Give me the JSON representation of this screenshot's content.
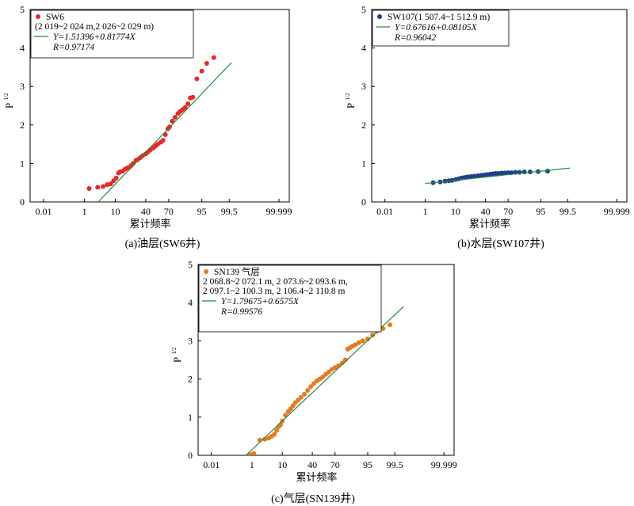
{
  "chart_data": [
    {
      "type": "scatter",
      "caption": "(a)油层(SW6井)",
      "xlabel": "累计频率",
      "ylabel": "P",
      "ylabel_sup": "1/2",
      "x_ticks": [
        "0.01",
        "1",
        "10",
        "40",
        "70",
        "95",
        "99.5",
        "99.999"
      ],
      "y_ticks": [
        "0",
        "1",
        "2",
        "3",
        "4",
        "5"
      ],
      "ylim": [
        0,
        5
      ],
      "legend": {
        "series_name": "SW6",
        "extra_lines": [
          "(2 019~2 024 m,2 026~2 029 m)"
        ],
        "fit_line": "Y=1.51396+0.81774X",
        "r_line": "R=0.97174"
      },
      "series": [
        {
          "name": "SW6",
          "color": "#e8282a",
          "points": [
            [
              1.5,
              0.35
            ],
            [
              3,
              0.38
            ],
            [
              4.5,
              0.4
            ],
            [
              6,
              0.45
            ],
            [
              7.5,
              0.47
            ],
            [
              9,
              0.55
            ],
            [
              10.5,
              0.62
            ],
            [
              12,
              0.75
            ],
            [
              13,
              0.78
            ],
            [
              15,
              0.8
            ],
            [
              17,
              0.85
            ],
            [
              19,
              0.88
            ],
            [
              21,
              0.9
            ],
            [
              23,
              0.95
            ],
            [
              25,
              1.0
            ],
            [
              28,
              1.08
            ],
            [
              30,
              1.1
            ],
            [
              33,
              1.15
            ],
            [
              36,
              1.2
            ],
            [
              40,
              1.25
            ],
            [
              43,
              1.3
            ],
            [
              46,
              1.35
            ],
            [
              50,
              1.4
            ],
            [
              53,
              1.45
            ],
            [
              56,
              1.5
            ],
            [
              60,
              1.55
            ],
            [
              63,
              1.6
            ],
            [
              66,
              1.75
            ],
            [
              69,
              1.9
            ],
            [
              71,
              1.95
            ],
            [
              74,
              2.1
            ],
            [
              77,
              2.2
            ],
            [
              80,
              2.3
            ],
            [
              82,
              2.35
            ],
            [
              84,
              2.4
            ],
            [
              86,
              2.45
            ],
            [
              88,
              2.55
            ],
            [
              89.5,
              2.7
            ],
            [
              91,
              2.72
            ],
            [
              93,
              3.2
            ],
            [
              95,
              3.4
            ],
            [
              96.5,
              3.6
            ],
            [
              98,
              3.75
            ]
          ]
        },
        {
          "name": "fit",
          "color": "#2a8a3a",
          "line": [
            [
              2.5,
              -0.08
            ],
            [
              99.6,
              3.62
            ]
          ]
        }
      ]
    },
    {
      "type": "scatter",
      "caption": "(b)水层(SW107井)",
      "xlabel": "累计频率",
      "ylabel": "P",
      "ylabel_sup": "1/2",
      "x_ticks": [
        "0.01",
        "1",
        "10",
        "40",
        "70",
        "95",
        "99.5",
        "99.999"
      ],
      "y_ticks": [
        "0",
        "1",
        "2",
        "3",
        "4",
        "5"
      ],
      "ylim": [
        0,
        5
      ],
      "legend": {
        "series_name": "SW107(1 507.4~1 512.9 m)",
        "extra_lines": [],
        "fit_line": "Y=0.67616+0.08105X",
        "r_line": "R=0.96042"
      },
      "series": [
        {
          "name": "SW107(1 507.4~1 512.9 m)",
          "color": "#1f3f8f",
          "points": [
            [
              2,
              0.5
            ],
            [
              3.5,
              0.52
            ],
            [
              5,
              0.54
            ],
            [
              6.5,
              0.55
            ],
            [
              8,
              0.56
            ],
            [
              10,
              0.58
            ],
            [
              12,
              0.6
            ],
            [
              14,
              0.62
            ],
            [
              16,
              0.63
            ],
            [
              18,
              0.64
            ],
            [
              20,
              0.65
            ],
            [
              23,
              0.66
            ],
            [
              26,
              0.67
            ],
            [
              30,
              0.68
            ],
            [
              34,
              0.69
            ],
            [
              38,
              0.7
            ],
            [
              42,
              0.71
            ],
            [
              46,
              0.72
            ],
            [
              50,
              0.73
            ],
            [
              54,
              0.74
            ],
            [
              58,
              0.74
            ],
            [
              62,
              0.75
            ],
            [
              66,
              0.75
            ],
            [
              70,
              0.76
            ],
            [
              74,
              0.76
            ],
            [
              78,
              0.77
            ],
            [
              82,
              0.77
            ],
            [
              86,
              0.78
            ],
            [
              90,
              0.78
            ],
            [
              94,
              0.79
            ],
            [
              97,
              0.8
            ]
          ]
        },
        {
          "name": "fit",
          "color": "#2a8a3a",
          "line": [
            [
              1,
              0.48
            ],
            [
              99.6,
              0.88
            ]
          ]
        }
      ]
    },
    {
      "type": "scatter",
      "caption": "(c)气层(SN139井)",
      "xlabel": "累计频率",
      "ylabel": "P",
      "ylabel_sup": "1/2",
      "x_ticks": [
        "0.01",
        "1",
        "10",
        "40",
        "70",
        "95",
        "99.5",
        "99.999"
      ],
      "y_ticks": [
        "0",
        "1",
        "2",
        "3",
        "4",
        "5"
      ],
      "ylim": [
        0,
        5
      ],
      "legend": {
        "series_name": "SN139 气层",
        "extra_lines": [
          "2 068.8~2 072.1 m, 2 073.6~2 093.6 m,",
          "2 097.1~2 100.3 m, 2 106.4~2 110.8 m"
        ],
        "fit_line": "Y=1.79675+0.6575X",
        "r_line": "R=0.99576"
      },
      "series": [
        {
          "name": "SN139 气层",
          "color": "#e87a22",
          "points": [
            [
              0.8,
              0.02
            ],
            [
              1.2,
              0.05
            ],
            [
              2,
              0.4
            ],
            [
              3,
              0.42
            ],
            [
              4,
              0.45
            ],
            [
              5,
              0.5
            ],
            [
              6,
              0.55
            ],
            [
              7,
              0.65
            ],
            [
              8,
              0.75
            ],
            [
              9,
              0.8
            ],
            [
              10,
              0.9
            ],
            [
              12,
              1.05
            ],
            [
              14,
              1.15
            ],
            [
              16,
              1.22
            ],
            [
              18,
              1.3
            ],
            [
              20,
              1.38
            ],
            [
              23,
              1.45
            ],
            [
              26,
              1.52
            ],
            [
              30,
              1.6
            ],
            [
              34,
              1.7
            ],
            [
              38,
              1.8
            ],
            [
              42,
              1.88
            ],
            [
              46,
              1.95
            ],
            [
              50,
              2.0
            ],
            [
              54,
              2.05
            ],
            [
              58,
              2.12
            ],
            [
              62,
              2.18
            ],
            [
              66,
              2.25
            ],
            [
              70,
              2.3
            ],
            [
              74,
              2.35
            ],
            [
              78,
              2.42
            ],
            [
              81,
              2.5
            ],
            [
              83,
              2.78
            ],
            [
              85,
              2.82
            ],
            [
              87,
              2.86
            ],
            [
              89,
              2.9
            ],
            [
              91,
              2.95
            ],
            [
              93,
              3.0
            ],
            [
              95,
              3.05
            ],
            [
              96.5,
              3.15
            ],
            [
              97.5,
              3.25
            ],
            [
              98.5,
              3.32
            ],
            [
              99.2,
              3.42
            ]
          ]
        },
        {
          "name": "fit",
          "color": "#2a8a3a",
          "line": [
            [
              0.45,
              -0.06
            ],
            [
              99.8,
              3.9
            ]
          ]
        }
      ]
    }
  ]
}
